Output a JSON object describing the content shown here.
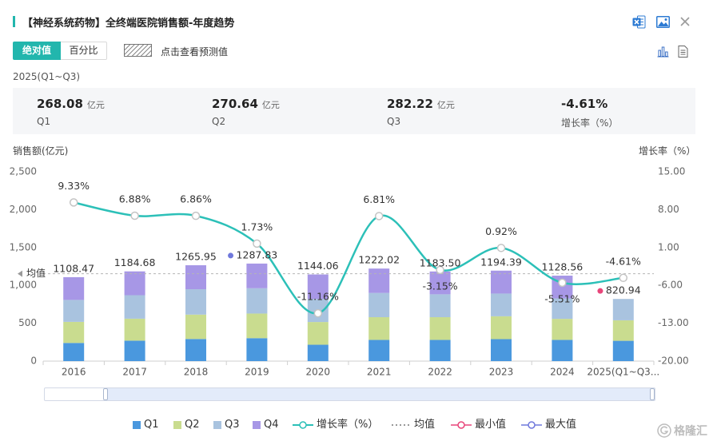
{
  "header": {
    "title": "【神经系统药物】全终端医院销售额-年度趋势",
    "icons": [
      "excel-icon",
      "image-icon",
      "close-icon"
    ]
  },
  "toolbar": {
    "tabs": [
      {
        "label": "绝对值",
        "active": true
      },
      {
        "label": "百分比",
        "active": false
      }
    ],
    "forecast_label": "点击查看预测值",
    "view_icons": [
      "bar-chart-icon",
      "document-icon"
    ]
  },
  "period_label": "2025(Q1~Q3)",
  "summary": [
    {
      "value": "268.08",
      "unit": "亿元",
      "label": "Q1"
    },
    {
      "value": "270.64",
      "unit": "亿元",
      "label": "Q2"
    },
    {
      "value": "282.22",
      "unit": "亿元",
      "label": "Q3"
    },
    {
      "value": "-4.61%",
      "label": "增长率（%）"
    }
  ],
  "colors": {
    "accent": "#22b6ad",
    "q1": "#4a98de",
    "q2": "#c9dc8f",
    "q3": "#a9c3df",
    "q4": "#a797e6",
    "growth_line": "#2cc0b8",
    "min_marker": "#e8457a",
    "max_marker": "#6f78dc",
    "average_line": "#b5b5b5"
  },
  "chart_data": {
    "type": "bar",
    "stacked": true,
    "categories": [
      "2016",
      "2017",
      "2018",
      "2019",
      "2020",
      "2021",
      "2022",
      "2023",
      "2024",
      "2025(Q1~Q3..."
    ],
    "series": [
      {
        "name": "Q1",
        "axis": "left",
        "values": [
          240,
          270,
          292,
          303,
          216,
          280,
          280,
          290,
          280,
          268.08
        ]
      },
      {
        "name": "Q2",
        "axis": "left",
        "values": [
          278,
          290,
          322,
          325,
          300,
          300,
          300,
          302,
          278,
          270.64
        ]
      },
      {
        "name": "Q3",
        "axis": "left",
        "values": [
          290,
          310,
          335,
          334,
          304,
          320,
          302,
          300,
          270,
          282.22
        ]
      },
      {
        "name": "Q4",
        "axis": "left",
        "values": [
          300.47,
          314.68,
          316.95,
          325.83,
          324.06,
          322.02,
          301.5,
          302.39,
          300.56,
          null
        ]
      },
      {
        "name": "增长率（%）",
        "type": "line",
        "axis": "right",
        "smooth": true,
        "values": [
          9.33,
          6.88,
          6.86,
          1.73,
          -11.16,
          6.81,
          -3.15,
          0.92,
          -5.51,
          -4.61
        ]
      }
    ],
    "totals": [
      1108.47,
      1184.68,
      1265.95,
      1287.83,
      1144.06,
      1222.02,
      1183.5,
      1194.39,
      1128.56,
      820.94
    ],
    "average": {
      "label": "均值",
      "value": 1154.04
    },
    "max": {
      "label": "最大值",
      "index": 3,
      "value": 1287.83
    },
    "min": {
      "label": "最小值",
      "index": 9,
      "value": 820.94
    },
    "ylabel": "销售额(亿元)",
    "y2label": "增长率（%）",
    "ylim": [
      0,
      2500
    ],
    "y2lim": [
      -20,
      15
    ],
    "yticks": [
      0,
      500,
      1000,
      1500,
      2000,
      2500
    ],
    "y2ticks": [
      -20,
      -13,
      -6,
      1,
      8,
      15
    ],
    "grid": false,
    "legend": "bottom"
  },
  "data_zoom": {
    "start_percent": 10,
    "end_percent": 100
  },
  "watermark": {
    "text": "格隆汇"
  }
}
